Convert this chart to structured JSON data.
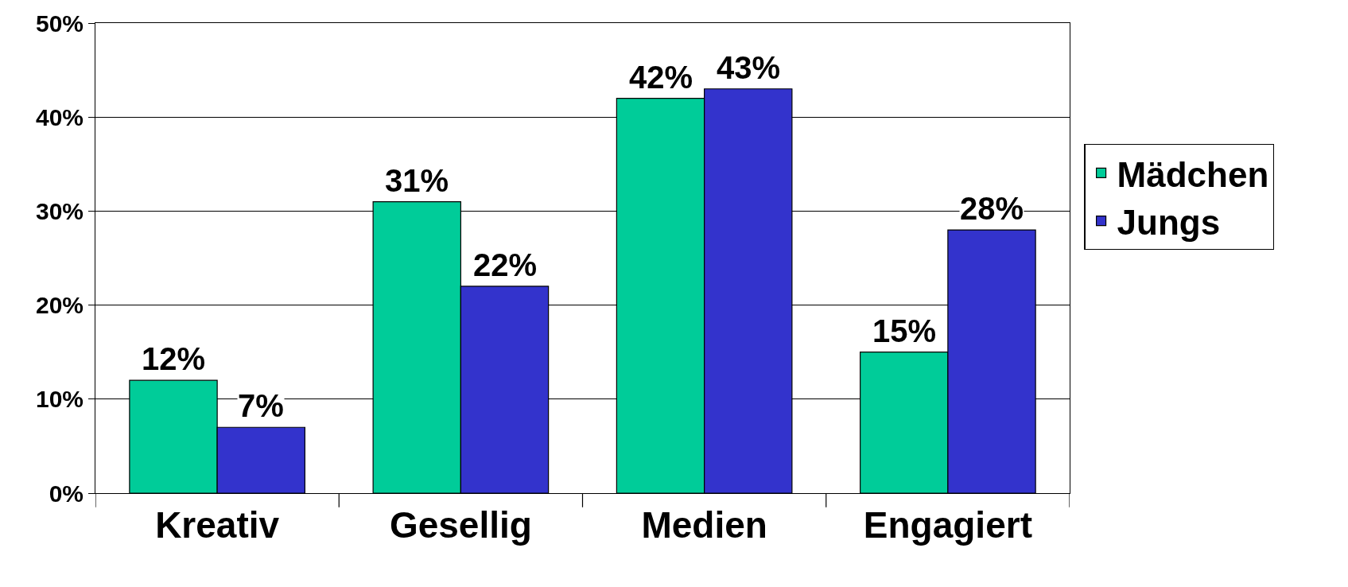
{
  "chart_data": {
    "type": "bar",
    "categories": [
      "Kreativ",
      "Gesellig",
      "Medien",
      "Engagiert"
    ],
    "series": [
      {
        "name": "Mädchen",
        "color": "#00cc99",
        "values": [
          12,
          31,
          42,
          15
        ],
        "value_labels": [
          "12%",
          "31%",
          "42%",
          "15%"
        ]
      },
      {
        "name": "Jungs",
        "color": "#3333cc",
        "values": [
          7,
          22,
          43,
          28
        ],
        "value_labels": [
          "7%",
          "22%",
          "43%",
          "28%"
        ]
      }
    ],
    "ylim": [
      0,
      50
    ],
    "yticks": [
      {
        "value": 0,
        "label": "0%"
      },
      {
        "value": 10,
        "label": "10%"
      },
      {
        "value": 20,
        "label": "20%"
      },
      {
        "value": 30,
        "label": "30%"
      },
      {
        "value": 40,
        "label": "40%"
      },
      {
        "value": 50,
        "label": "50%"
      }
    ],
    "grid": "y",
    "legend": "right"
  }
}
